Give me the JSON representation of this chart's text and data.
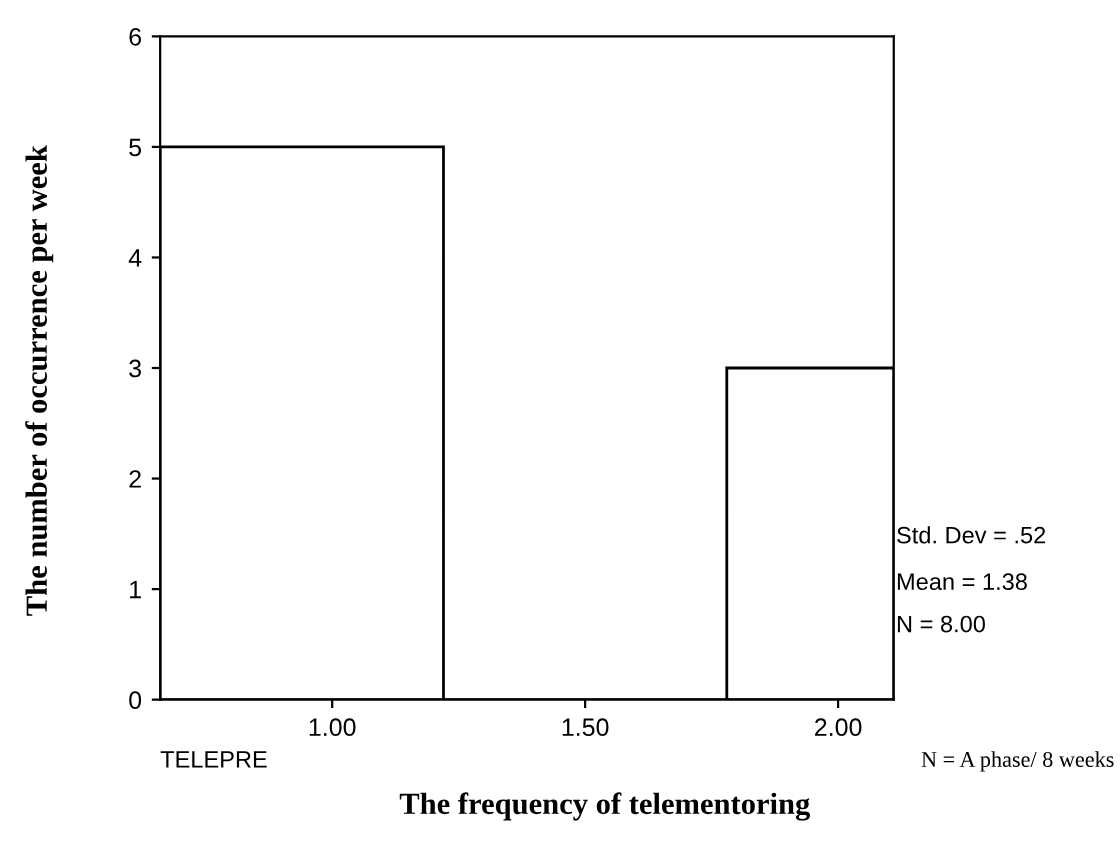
{
  "chart_data": {
    "type": "histogram",
    "xlabel": "The frequency of telementoring",
    "ylabel": "The number of occurrence per week",
    "bins": [
      0.66,
      1.22,
      1.78,
      2.11
    ],
    "values": [
      5,
      0,
      3
    ],
    "color": "#ffffff",
    "xlim": [
      0.66,
      2.11
    ],
    "xticks": [
      {
        "value": 1.0,
        "label": "1.00"
      },
      {
        "value": 1.5,
        "label": "1.50"
      },
      {
        "value": 2.0,
        "label": "2.00"
      }
    ],
    "ylim": [
      0,
      6
    ],
    "yticks": [
      0,
      1,
      2,
      3,
      4,
      5,
      6
    ],
    "grid": false,
    "legend": false,
    "annotations": [
      "Std. Dev = .52",
      "Mean = 1.38",
      "N = 8.00",
      "TELEPRE",
      "N = A phase/ 8 weeks"
    ]
  }
}
